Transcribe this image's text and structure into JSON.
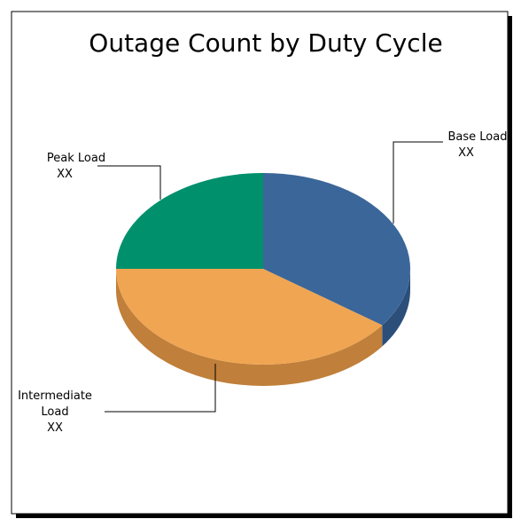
{
  "chart_data": {
    "type": "pie3d",
    "title": "Outage Count by Duty Cycle",
    "categories": [
      "Base Load",
      "Intermediate Load",
      "Peak Load"
    ],
    "values": [
      35,
      40,
      25
    ],
    "value_labels": [
      "XX",
      "XX",
      "XX"
    ],
    "colors": [
      "#3b6699",
      "#f0a552",
      "#00906c"
    ],
    "side_colors": [
      "#2c4f7a",
      "#c07f3a",
      "#006e52"
    ]
  }
}
